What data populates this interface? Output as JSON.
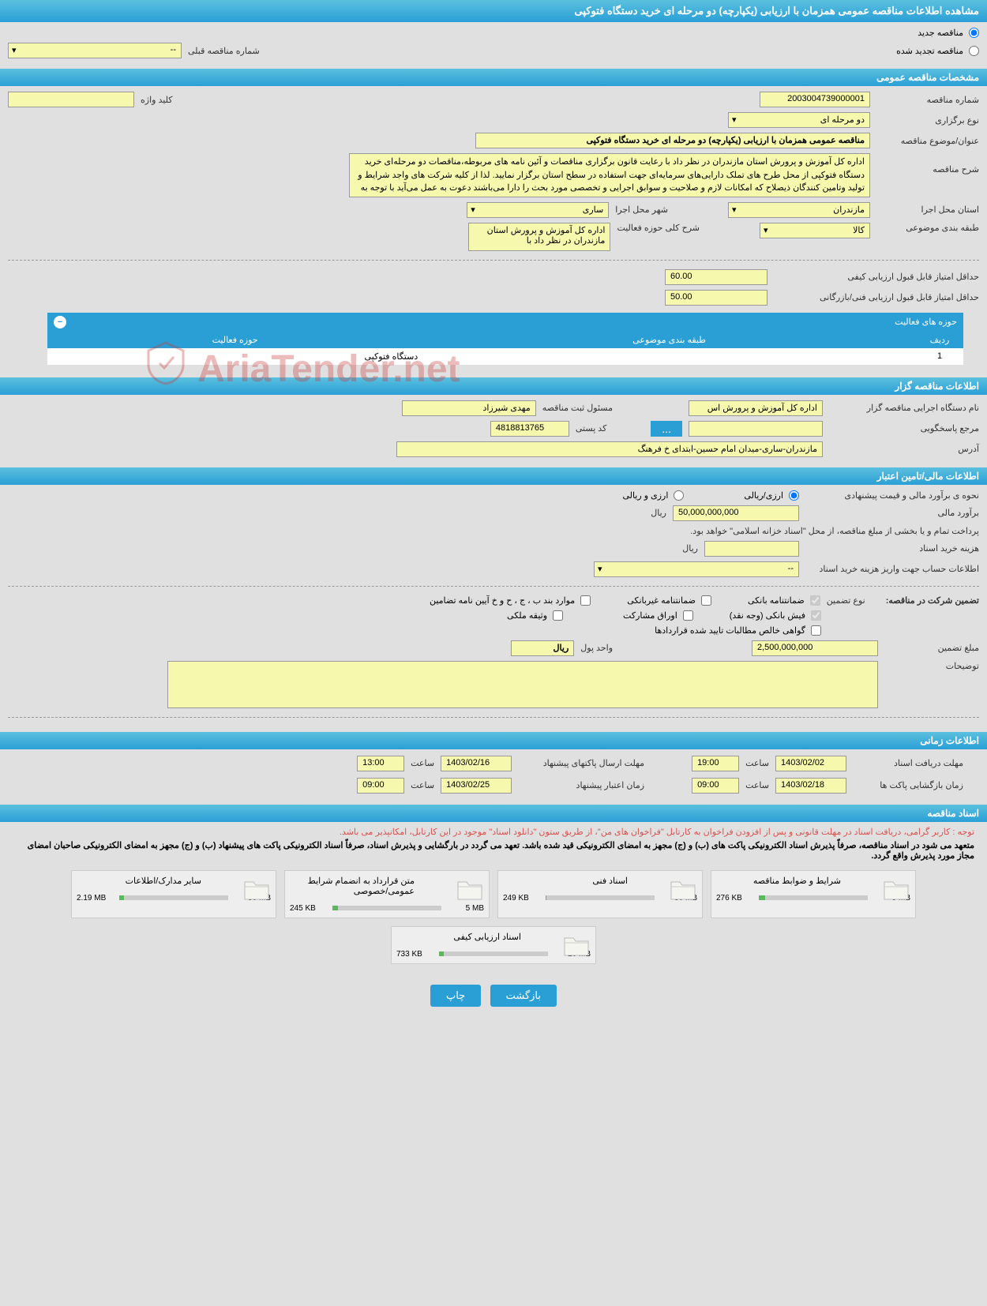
{
  "page_title": "مشاهده اطلاعات مناقصه عمومی همزمان با ارزیابی (یکپارچه) دو مرحله ای خرید دستگاه فتوکپی",
  "tender_type": {
    "new_label": "مناقصه جدید",
    "renewed_label": "مناقصه تجدید شده",
    "prev_num_label": "شماره مناقصه قبلی",
    "prev_num_value": "--"
  },
  "sections": {
    "general": "مشخصات مناقصه عمومی",
    "holder": "اطلاعات مناقصه گزار",
    "financial": "اطلاعات مالی/تامین اعتبار",
    "time": "اطلاعات زمانی",
    "docs": "اسناد مناقصه"
  },
  "general": {
    "tender_no_label": "شماره مناقصه",
    "tender_no": "2003004739000001",
    "keyword_label": "کلید واژه",
    "keyword": "",
    "type_label": "نوع برگزاری",
    "type": "دو مرحله ای",
    "subject_label": "عنوان/موضوع مناقصه",
    "subject": "مناقصه عمومی همزمان با ارزیابی (یکپارچه) دو مرحله ای خرید دستگاه فتوکپی",
    "desc_label": "شرح مناقصه",
    "desc": "اداره کل آموزش و پرورش استان مازندران در نظر داد با رعایت قانون برگزاری مناقصات و آئین نامه های مربوطه،مناقصات دو مرحله‌ای خرید دستگاه فتوکپی از محل طرح های تملک دارایی‌های سرمایه‌ای جهت استفاده در سطح استان برگزار نمایید. لذا از کلیه شرکت های واجد شرایط و تولید وتامین کنندگان ذیصلاح که امکانات لازم و صلاحیت و سوابق اجرایی و تخصصی مورد بحث را دارا می‌باشند دعوت به عمل می‌آید با توجه به",
    "province_label": "استان محل اجرا",
    "province": "مازندران",
    "city_label": "شهر محل اجرا",
    "city": "ساری",
    "category_label": "طبقه بندی موضوعی",
    "category": "کالا",
    "activity_desc_label": "شرح کلی حوزه فعالیت",
    "activity_desc": "اداره کل آموزش و پرورش استان مازندران در نظر داد با",
    "min_qual_label": "حداقل امتیاز قابل قبول ارزیابی کیفی",
    "min_qual": "60.00",
    "min_tech_label": "حداقل امتیاز قابل قبول ارزیابی فنی/بازرگانی",
    "min_tech": "50.00"
  },
  "activity_table": {
    "title": "حوزه های فعالیت",
    "col_row": "ردیف",
    "col_category": "طبقه بندی موضوعی",
    "col_activity": "حوزه فعالیت",
    "rows": [
      {
        "n": "1",
        "category": "",
        "activity": "دستگاه فتوکپی"
      }
    ]
  },
  "holder": {
    "org_label": "نام دستگاه اجرایی مناقصه گزار",
    "org": "اداره کل آموزش و پرورش اس",
    "reg_person_label": "مسئول ثبت مناقصه",
    "reg_person": "مهدی شیرزاد",
    "responder_label": "مرجع پاسخگویی",
    "responder_btn": "...",
    "postal_label": "کد پستی",
    "postal": "4818813765",
    "address_label": "آدرس",
    "address": "مازندران-ساری-میدان امام حسین-ابتدای خ فرهنگ"
  },
  "financial": {
    "estimate_method_label": "نحوه ی برآورد مالی و قیمت پیشنهادی",
    "rial_opt": "ارزی/ریالی",
    "currency_opt": "ارزی و ریالی",
    "estimate_label": "برآورد مالی",
    "estimate": "50,000,000,000",
    "currency_unit": "ریال",
    "payment_note": "پرداخت تمام و یا بخشی از مبلغ مناقصه، از محل \"اسناد خزانه اسلامی\" خواهد بود.",
    "doc_fee_label": "هزینه خرید اسناد",
    "doc_fee": "",
    "account_label": "اطلاعات حساب جهت واریز هزینه خرید اسناد",
    "account": "--",
    "guarantee_title": "تضمین شرکت در مناقصه:",
    "guarantee_type_label": "نوع تضمین",
    "guarantees": {
      "bank": "ضمانتنامه بانکی",
      "nonbank": "ضمانتنامه غیربانکی",
      "bpchkh": "موارد بند ب ، ج ، ح و خ آیین نامه تضامین",
      "fish": "فیش بانکی (وجه نقد)",
      "bonds": "اوراق مشارکت",
      "property": "وثیقه ملکی",
      "receivables": "گواهی خالص مطالبات تایید شده قراردادها"
    },
    "guarantee_amount_label": "مبلغ تضمین",
    "guarantee_amount": "2,500,000,000",
    "money_unit_label": "واحد پول",
    "money_unit": "ریال",
    "notes_label": "توضیحات"
  },
  "time": {
    "doc_deadline_label": "مهلت دریافت اسناد",
    "doc_deadline_date": "1403/02/02",
    "doc_deadline_time": "19:00",
    "packet_deadline_label": "مهلت ارسال پاکتهای پیشنهاد",
    "packet_deadline_date": "1403/02/16",
    "packet_deadline_time": "13:00",
    "open_label": "زمان بازگشایی پاکت ها",
    "open_date": "1403/02/18",
    "open_time": "09:00",
    "validity_label": "زمان اعتبار پیشنهاد",
    "validity_date": "1403/02/25",
    "validity_time": "09:00",
    "time_label": "ساعت"
  },
  "docs": {
    "notice1": "توجه : کاربر گرامی، دریافت اسناد در مهلت قانونی و پس از افزودن فراخوان به کارتابل \"فراخوان های من\"، از طریق ستون \"دانلود اسناد\" موجود در این کارتابل، امکانپذیر می باشد.",
    "notice2": "متعهد می شود در اسناد مناقصه، صرفاً پذیرش اسناد الکترونیکی پاکت های (ب) و (ج) مجهز به امضای الکترونیکی قید شده باشد. تعهد می گردد در بارگشایی و پذیرش اسناد، صرفاً اسناد الکترونیکی پاکت های پیشنهاد (ب) و (ج) مجهز به امضای الکترونیکی صاحبان امضای مجاز مورد پذیرش واقع گردد.",
    "items": [
      {
        "title": "شرایط و ضوابط مناقصه",
        "used": "276 KB",
        "max": "5 MB",
        "pct": 6
      },
      {
        "title": "اسناد فنی",
        "used": "249 KB",
        "max": "50 MB",
        "pct": 1
      },
      {
        "title": "متن قرارداد به انضمام شرایط عمومی/خصوصی",
        "used": "245 KB",
        "max": "5 MB",
        "pct": 5
      },
      {
        "title": "سایر مدارک/اطلاعات",
        "used": "2.19 MB",
        "max": "50 MB",
        "pct": 4
      },
      {
        "title": "اسناد ارزیابی کیفی",
        "used": "733 KB",
        "max": "20 MB",
        "pct": 4
      }
    ]
  },
  "footer": {
    "back": "بازگشت",
    "print": "چاپ"
  },
  "watermark": "AriaTender.net",
  "colors": {
    "header_bg": "#2a9fd6",
    "value_bg": "#f6f8ae",
    "page_bg": "#e0e0e0",
    "btn_bg": "#2a9fd6",
    "bar_fill": "#5cb85c",
    "notice_red": "#d9534f"
  }
}
